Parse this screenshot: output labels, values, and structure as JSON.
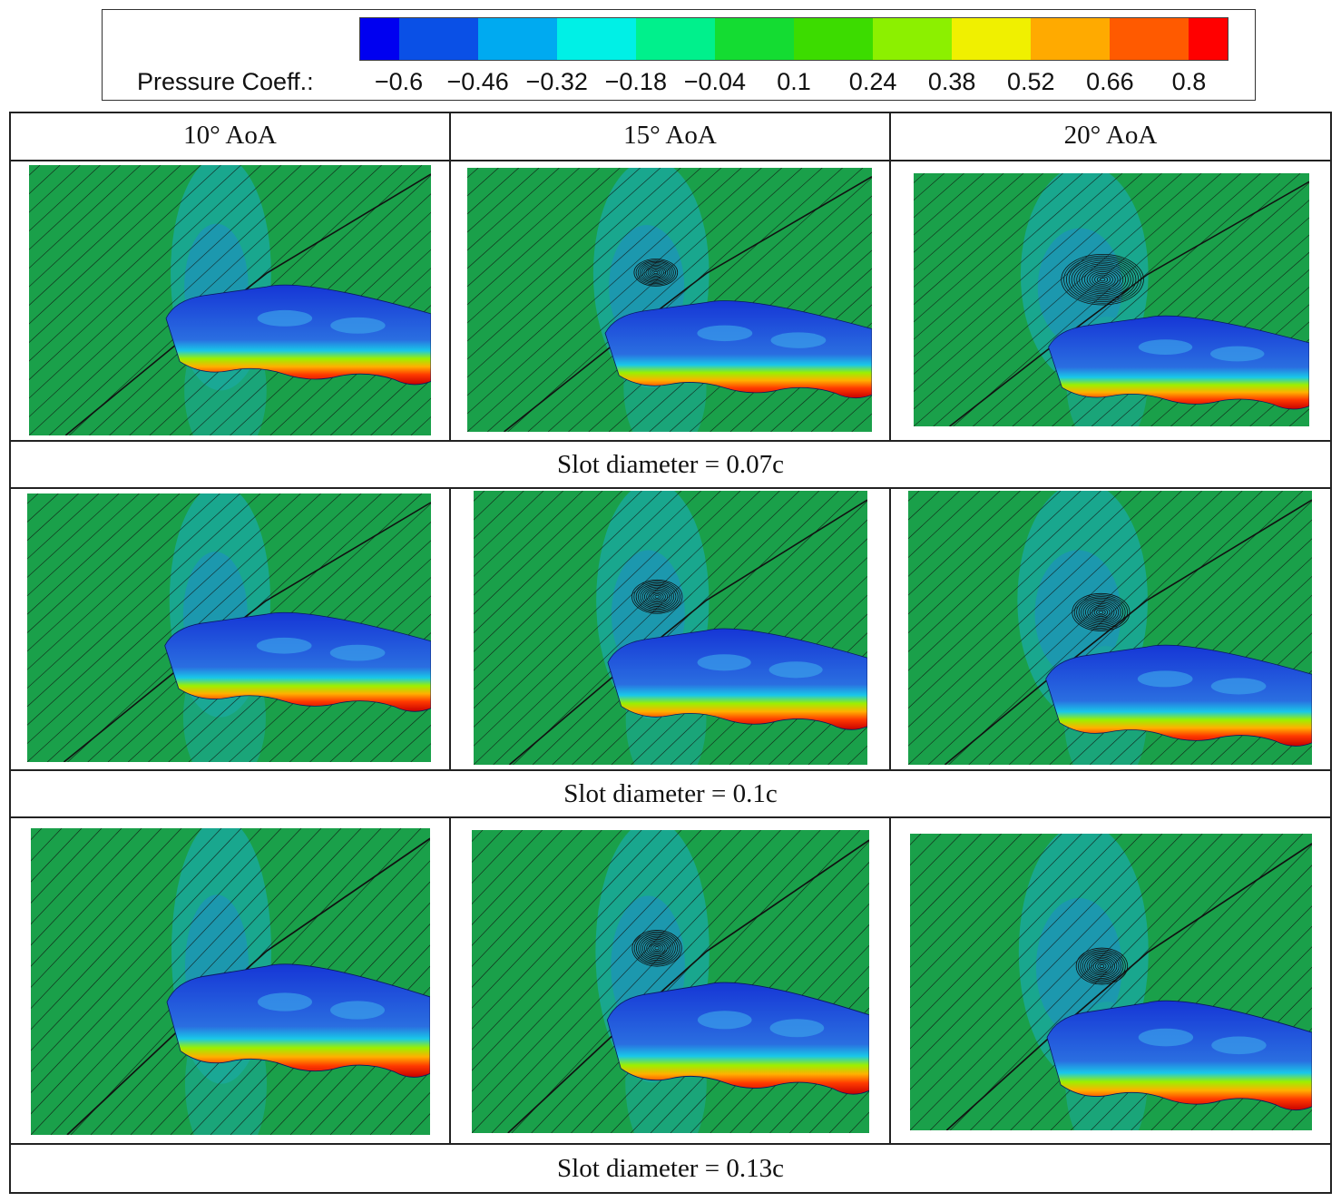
{
  "legend": {
    "label": "Pressure Coeff.:",
    "ticks": [
      "−0.6",
      "−0.46",
      "−0.32",
      "−0.18",
      "−0.04",
      "0.1",
      "0.24",
      "0.38",
      "0.52",
      "0.66",
      "0.8"
    ],
    "colors": [
      "#0000f0",
      "#0a50e6",
      "#00aaf0",
      "#00f0e6",
      "#00f08c",
      "#14dc32",
      "#3cdc00",
      "#8cf000",
      "#f0f000",
      "#ffaa00",
      "#ff5a00",
      "#ff0000"
    ]
  },
  "columns": [
    "10° AoA",
    "15° AoA",
    "20° AoA"
  ],
  "rows": [
    {
      "label": "Slot diameter = 0.07c",
      "vortex": [
        0,
        0.45,
        1.0
      ]
    },
    {
      "label": "Slot diameter = 0.1c",
      "vortex": [
        0,
        0.6,
        0.65
      ]
    },
    {
      "label": "Slot diameter = 0.13c",
      "vortex": [
        0,
        0.55,
        0.6
      ]
    }
  ],
  "colors": {
    "field_green": "#1aa04a",
    "field_teal": "#1aa89a",
    "field_blue": "#1f8cc8",
    "wing_blue": "#1636d6",
    "wing_mid": "#2a6ee0",
    "streamline": "#111111"
  }
}
